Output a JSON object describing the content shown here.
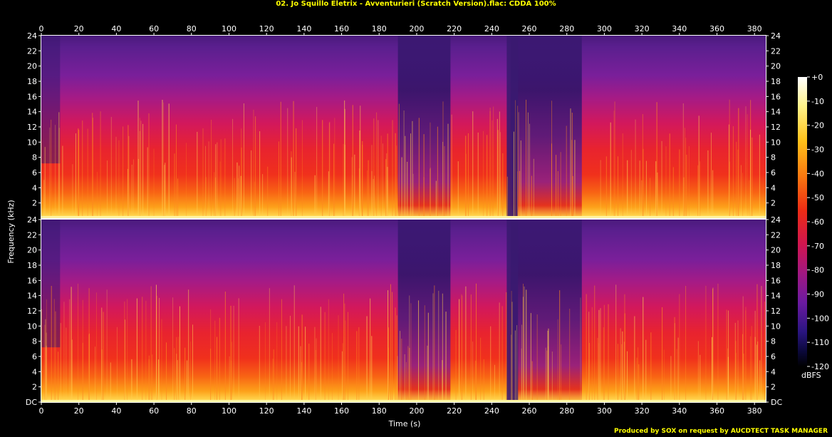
{
  "title": "02. Jo Squillo Eletrix - Avventurieri (Scratch Version).flac: CDDA 100%",
  "credit": "Produced by SOX on request by AUCDTECT TASK MANAGER",
  "chart_data": {
    "type": "heatmap",
    "title": "02. Jo Squillo Eletrix - Avventurieri (Scratch Version).flac: CDDA 100%",
    "xlabel": "Time (s)",
    "ylabel": "Frequency (kHz)",
    "x_ticks": [
      "0",
      "20",
      "40",
      "60",
      "80",
      "100",
      "120",
      "140",
      "160",
      "180",
      "200",
      "220",
      "240",
      "260",
      "280",
      "300",
      "320",
      "340",
      "360",
      "380"
    ],
    "y_ticks_top": [
      "24",
      "22",
      "20",
      "18",
      "16",
      "14",
      "12",
      "10",
      "8",
      "6",
      "4",
      "2"
    ],
    "y_ticks_bottom": [
      "24",
      "22",
      "20",
      "18",
      "16",
      "14",
      "12",
      "10",
      "8",
      "6",
      "4",
      "2",
      "DC"
    ],
    "xlim": [
      0,
      386
    ],
    "ylim": [
      0,
      24
    ],
    "channels": 2,
    "colorbar": {
      "label": "dBFS",
      "ticks": [
        "+0",
        "-10",
        "-20",
        "-30",
        "-40",
        "-50",
        "-60",
        "-70",
        "-80",
        "-90",
        "-100",
        "-110",
        "-120"
      ],
      "range": [
        -120,
        0
      ]
    },
    "quiet_segments_s": [
      [
        190,
        218
      ],
      [
        250,
        288
      ]
    ],
    "dropout_s": [
      248,
      254
    ]
  }
}
